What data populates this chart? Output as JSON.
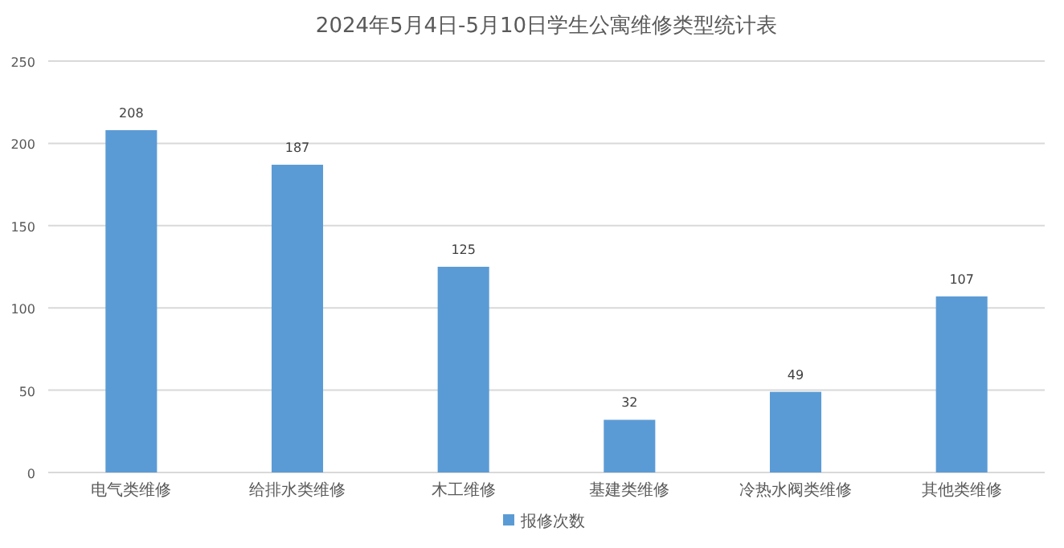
{
  "chart_data": {
    "type": "bar",
    "title": "2024年5月4日-5月10日学生公寓维修类型统计表",
    "categories": [
      "电气类维修",
      "给排水类维修",
      "木工维修",
      "基建类维修",
      "冷热水阀类维修",
      "其他类维修"
    ],
    "series": [
      {
        "name": "报修次数",
        "color": "#5b9bd5",
        "values": [
          208,
          187,
          125,
          32,
          49,
          107
        ]
      }
    ],
    "ylim": [
      0,
      250
    ],
    "yticks": [
      0,
      50,
      100,
      150,
      200,
      250
    ],
    "grid": "y",
    "legend": "bottom",
    "data_labels": true
  }
}
